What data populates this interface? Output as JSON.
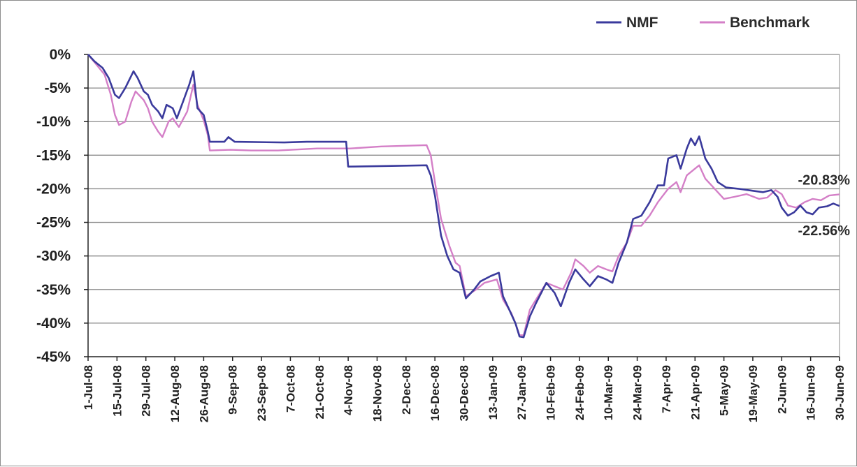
{
  "chart_data": {
    "type": "line",
    "title": "",
    "xlabel": "",
    "ylabel": "",
    "grid": true,
    "legend_position": "top-right",
    "ylim": [
      -45,
      0
    ],
    "y_ticks": [
      0,
      -5,
      -10,
      -15,
      -20,
      -25,
      -30,
      -35,
      -40,
      -45
    ],
    "y_tick_labels": [
      "0%",
      "-5%",
      "-10%",
      "-15%",
      "-20%",
      "-25%",
      "-30%",
      "-35%",
      "-40%",
      "-45%"
    ],
    "x_tick_labels": [
      "1-Jul-08",
      "15-Jul-08",
      "29-Jul-08",
      "12-Aug-08",
      "26-Aug-08",
      "9-Sep-08",
      "23-Sep-08",
      "7-Oct-08",
      "21-Oct-08",
      "4-Nov-08",
      "18-Nov-08",
      "2-Dec-08",
      "16-Dec-08",
      "30-Dec-08",
      "13-Jan-09",
      "27-Jan-09",
      "10-Feb-09",
      "24-Feb-09",
      "10-Mar-09",
      "24-Mar-09",
      "7-Apr-09",
      "21-Apr-09",
      "5-May-09",
      "19-May-09",
      "2-Jun-09",
      "16-Jun-09",
      "30-Jun-09"
    ],
    "x_range": [
      "2008-07-01",
      "2009-06-30"
    ],
    "series": [
      {
        "name": "NMF",
        "color": "#3a3a9c",
        "points": [
          [
            "2008-07-01",
            0
          ],
          [
            "2008-07-04",
            -1
          ],
          [
            "2008-07-08",
            -2
          ],
          [
            "2008-07-11",
            -3.5
          ],
          [
            "2008-07-14",
            -6
          ],
          [
            "2008-07-16",
            -6.5
          ],
          [
            "2008-07-19",
            -5
          ],
          [
            "2008-07-23",
            -2.5
          ],
          [
            "2008-07-25",
            -3.5
          ],
          [
            "2008-07-28",
            -5.5
          ],
          [
            "2008-07-30",
            -6
          ],
          [
            "2008-08-01",
            -7.5
          ],
          [
            "2008-08-04",
            -8.5
          ],
          [
            "2008-08-06",
            -9.5
          ],
          [
            "2008-08-08",
            -7.5
          ],
          [
            "2008-08-11",
            -8
          ],
          [
            "2008-08-13",
            -9.5
          ],
          [
            "2008-08-16",
            -7
          ],
          [
            "2008-08-19",
            -4.5
          ],
          [
            "2008-08-21",
            -2.5
          ],
          [
            "2008-08-23",
            -8
          ],
          [
            "2008-08-26",
            -9
          ],
          [
            "2008-08-28",
            -11.5
          ],
          [
            "2008-08-29",
            -13
          ],
          [
            "2008-09-05",
            -13
          ],
          [
            "2008-09-07",
            -12.3
          ],
          [
            "2008-09-10",
            -13
          ],
          [
            "2008-10-04",
            -13.1
          ],
          [
            "2008-10-15",
            -13
          ],
          [
            "2008-11-03",
            -13
          ],
          [
            "2008-11-04",
            -16.7
          ],
          [
            "2008-11-25",
            -16.6
          ],
          [
            "2008-12-12",
            -16.5
          ],
          [
            "2008-12-14",
            -18
          ],
          [
            "2008-12-16",
            -21
          ],
          [
            "2008-12-19",
            -27
          ],
          [
            "2008-12-22",
            -30
          ],
          [
            "2008-12-25",
            -32
          ],
          [
            "2008-12-28",
            -32.5
          ],
          [
            "2008-12-31",
            -36.3
          ],
          [
            "2009-01-04",
            -35
          ],
          [
            "2009-01-07",
            -33.8
          ],
          [
            "2009-01-12",
            -33
          ],
          [
            "2009-01-16",
            -32.5
          ],
          [
            "2009-01-18",
            -36
          ],
          [
            "2009-01-21",
            -38
          ],
          [
            "2009-01-24",
            -40
          ],
          [
            "2009-01-26",
            -42
          ],
          [
            "2009-01-28",
            -42.1
          ],
          [
            "2009-01-31",
            -39
          ],
          [
            "2009-02-03",
            -37
          ],
          [
            "2009-02-08",
            -34
          ],
          [
            "2009-02-12",
            -35.5
          ],
          [
            "2009-02-15",
            -37.5
          ],
          [
            "2009-02-19",
            -34
          ],
          [
            "2009-02-22",
            -32
          ],
          [
            "2009-02-26",
            -33.5
          ],
          [
            "2009-03-01",
            -34.5
          ],
          [
            "2009-03-05",
            -33
          ],
          [
            "2009-03-09",
            -33.5
          ],
          [
            "2009-03-12",
            -34
          ],
          [
            "2009-03-15",
            -31
          ],
          [
            "2009-03-19",
            -28
          ],
          [
            "2009-03-22",
            -24.5
          ],
          [
            "2009-03-26",
            -24
          ],
          [
            "2009-03-30",
            -22
          ],
          [
            "2009-04-03",
            -19.5
          ],
          [
            "2009-04-06",
            -19.5
          ],
          [
            "2009-04-08",
            -15.5
          ],
          [
            "2009-04-12",
            -15
          ],
          [
            "2009-04-14",
            -17
          ],
          [
            "2009-04-17",
            -14
          ],
          [
            "2009-04-19",
            -12.5
          ],
          [
            "2009-04-21",
            -13.5
          ],
          [
            "2009-04-23",
            -12.2
          ],
          [
            "2009-04-26",
            -15.5
          ],
          [
            "2009-04-29",
            -17
          ],
          [
            "2009-05-02",
            -19
          ],
          [
            "2009-05-06",
            -19.8
          ],
          [
            "2009-05-12",
            -20
          ],
          [
            "2009-05-19",
            -20.3
          ],
          [
            "2009-05-24",
            -20.5
          ],
          [
            "2009-05-28",
            -20.2
          ],
          [
            "2009-05-31",
            -21.2
          ],
          [
            "2009-06-02",
            -22.8
          ],
          [
            "2009-06-05",
            -24
          ],
          [
            "2009-06-08",
            -23.5
          ],
          [
            "2009-06-11",
            -22.5
          ],
          [
            "2009-06-14",
            -23.5
          ],
          [
            "2009-06-17",
            -23.8
          ],
          [
            "2009-06-20",
            -22.8
          ],
          [
            "2009-06-24",
            -22.6
          ],
          [
            "2009-06-27",
            -22.2
          ],
          [
            "2009-06-30",
            -22.56
          ]
        ]
      },
      {
        "name": "Benchmark",
        "color": "#d47fc7",
        "points": [
          [
            "2008-07-01",
            0
          ],
          [
            "2008-07-05",
            -1.5
          ],
          [
            "2008-07-09",
            -3
          ],
          [
            "2008-07-12",
            -6
          ],
          [
            "2008-07-14",
            -9
          ],
          [
            "2008-07-16",
            -10.5
          ],
          [
            "2008-07-19",
            -10
          ],
          [
            "2008-07-22",
            -7
          ],
          [
            "2008-07-24",
            -5.5
          ],
          [
            "2008-07-28",
            -6.8
          ],
          [
            "2008-07-30",
            -8
          ],
          [
            "2008-08-01",
            -10
          ],
          [
            "2008-08-04",
            -11.5
          ],
          [
            "2008-08-06",
            -12.3
          ],
          [
            "2008-08-09",
            -10
          ],
          [
            "2008-08-11",
            -9.5
          ],
          [
            "2008-08-14",
            -10.8
          ],
          [
            "2008-08-18",
            -8.5
          ],
          [
            "2008-08-21",
            -4.5
          ],
          [
            "2008-08-23",
            -7.5
          ],
          [
            "2008-08-26",
            -9.8
          ],
          [
            "2008-08-28",
            -12
          ],
          [
            "2008-08-29",
            -14.3
          ],
          [
            "2008-09-08",
            -14.2
          ],
          [
            "2008-09-18",
            -14.3
          ],
          [
            "2008-10-01",
            -14.3
          ],
          [
            "2008-10-20",
            -14
          ],
          [
            "2008-11-05",
            -14
          ],
          [
            "2008-11-20",
            -13.7
          ],
          [
            "2008-12-12",
            -13.5
          ],
          [
            "2008-12-14",
            -15
          ],
          [
            "2008-12-16",
            -19
          ],
          [
            "2008-12-19",
            -24.5
          ],
          [
            "2008-12-23",
            -28.5
          ],
          [
            "2008-12-26",
            -31
          ],
          [
            "2008-12-28",
            -31.5
          ],
          [
            "2008-12-31",
            -36
          ],
          [
            "2009-01-05",
            -35
          ],
          [
            "2009-01-09",
            -34
          ],
          [
            "2009-01-15",
            -33.5
          ],
          [
            "2009-01-18",
            -36.5
          ],
          [
            "2009-01-22",
            -38.5
          ],
          [
            "2009-01-24",
            -40
          ],
          [
            "2009-01-26",
            -41.8
          ],
          [
            "2009-01-28",
            -41.8
          ],
          [
            "2009-01-31",
            -38
          ],
          [
            "2009-02-04",
            -36
          ],
          [
            "2009-02-08",
            -34
          ],
          [
            "2009-02-12",
            -34.5
          ],
          [
            "2009-02-16",
            -35
          ],
          [
            "2009-02-20",
            -32.5
          ],
          [
            "2009-02-22",
            -30.5
          ],
          [
            "2009-02-26",
            -31.5
          ],
          [
            "2009-03-01",
            -32.5
          ],
          [
            "2009-03-05",
            -31.5
          ],
          [
            "2009-03-09",
            -32
          ],
          [
            "2009-03-12",
            -32.3
          ],
          [
            "2009-03-15",
            -30
          ],
          [
            "2009-03-19",
            -28
          ],
          [
            "2009-03-22",
            -25.5
          ],
          [
            "2009-03-26",
            -25.5
          ],
          [
            "2009-03-30",
            -24
          ],
          [
            "2009-04-03",
            -22
          ],
          [
            "2009-04-08",
            -20
          ],
          [
            "2009-04-12",
            -19
          ],
          [
            "2009-04-14",
            -20.5
          ],
          [
            "2009-04-17",
            -18
          ],
          [
            "2009-04-21",
            -17
          ],
          [
            "2009-04-23",
            -16.5
          ],
          [
            "2009-04-26",
            -18.5
          ],
          [
            "2009-04-29",
            -19.5
          ],
          [
            "2009-05-02",
            -20.5
          ],
          [
            "2009-05-05",
            -21.5
          ],
          [
            "2009-05-10",
            -21.2
          ],
          [
            "2009-05-16",
            -20.8
          ],
          [
            "2009-05-22",
            -21.5
          ],
          [
            "2009-05-26",
            -21.3
          ],
          [
            "2009-05-30",
            -20.2
          ],
          [
            "2009-06-02",
            -20.8
          ],
          [
            "2009-06-05",
            -22.5
          ],
          [
            "2009-06-09",
            -22.8
          ],
          [
            "2009-06-13",
            -22
          ],
          [
            "2009-06-17",
            -21.5
          ],
          [
            "2009-06-21",
            -21.7
          ],
          [
            "2009-06-25",
            -21
          ],
          [
            "2009-06-30",
            -20.83
          ]
        ]
      }
    ],
    "annotations": [
      {
        "series": "Benchmark",
        "text": "-20.83%"
      },
      {
        "series": "NMF",
        "text": "-22.56%"
      }
    ]
  }
}
